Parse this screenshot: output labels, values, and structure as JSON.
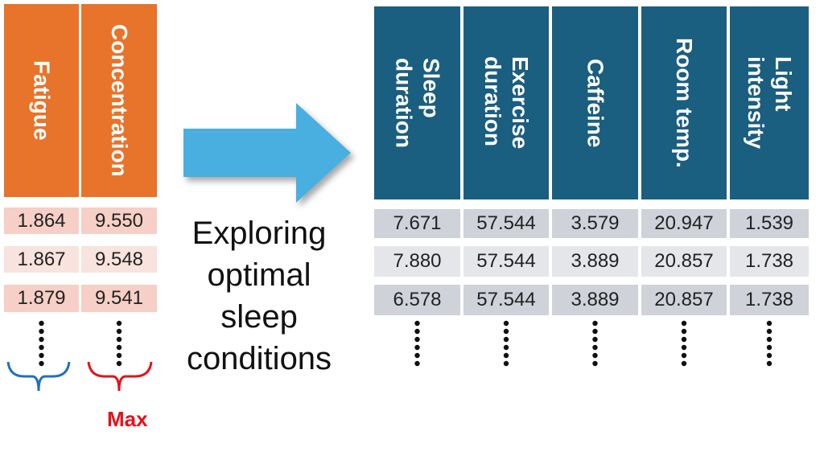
{
  "left_table": {
    "headers": [
      [
        "Fatigue"
      ],
      [
        "Concentration"
      ]
    ],
    "rows": [
      [
        "1.864",
        "9.550"
      ],
      [
        "1.867",
        "9.548"
      ],
      [
        "1.879",
        "9.541"
      ]
    ]
  },
  "max_label": "Max",
  "arrow_label": [
    "Exploring",
    "optimal",
    "sleep",
    "conditions"
  ],
  "right_table": {
    "headers": [
      [
        "Sleep",
        "duration"
      ],
      [
        "Exercise",
        "duration"
      ],
      [
        "Caffeine"
      ],
      [
        "Room temp."
      ],
      [
        "Light",
        "intensity"
      ]
    ],
    "rows": [
      [
        "7.671",
        "57.544",
        "3.579",
        "20.947",
        "1.539"
      ],
      [
        "7.880",
        "57.544",
        "3.889",
        "20.857",
        "1.738"
      ],
      [
        "6.578",
        "57.544",
        "3.889",
        "20.857",
        "1.738"
      ]
    ]
  }
}
